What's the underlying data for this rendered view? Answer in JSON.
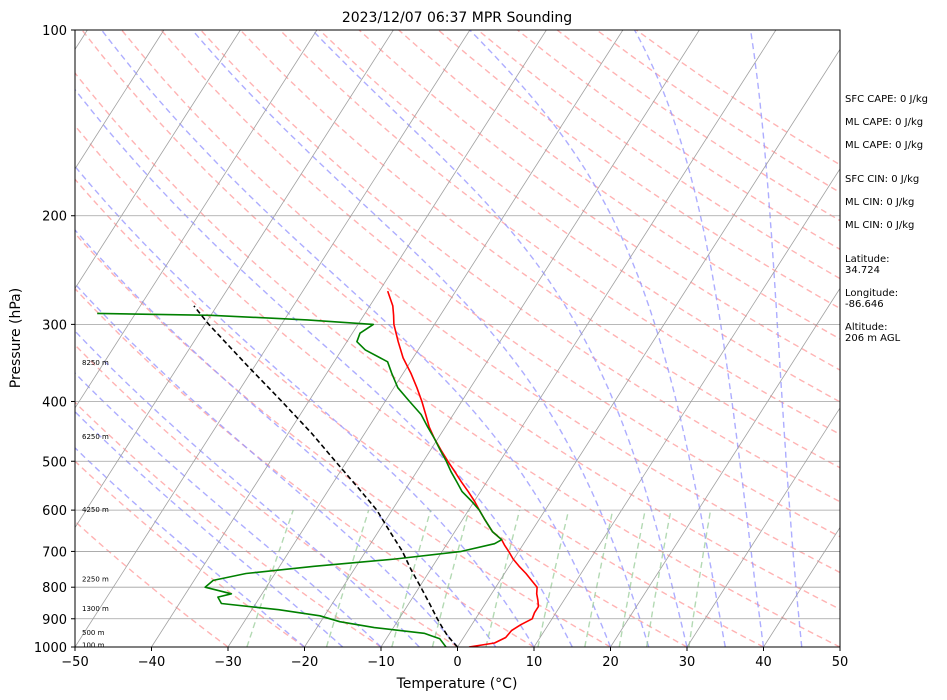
{
  "chart_data": {
    "type": "line",
    "title": "2023/12/07 06:37 MPR Sounding",
    "xlabel": "Temperature (°C)",
    "ylabel": "Pressure (hPa)",
    "xlim": [
      -50,
      50
    ],
    "ylim": [
      1000,
      100
    ],
    "y_scale": "log",
    "grid": true,
    "x_ticks": [
      "−50",
      "−40",
      "−30",
      "−20",
      "−10",
      "0",
      "10",
      "20",
      "30",
      "40",
      "50"
    ],
    "y_ticks": [
      "100",
      "200",
      "300",
      "400",
      "500",
      "600",
      "700",
      "800",
      "900",
      "1000"
    ],
    "height_labels": [
      {
        "text": "100 m",
        "p": 990
      },
      {
        "text": "500 m",
        "p": 945
      },
      {
        "text": "1300 m",
        "p": 865
      },
      {
        "text": "2250 m",
        "p": 775
      },
      {
        "text": "4250 m",
        "p": 598
      },
      {
        "text": "6250 m",
        "p": 455
      },
      {
        "text": "8250 m",
        "p": 345
      }
    ],
    "series": [
      {
        "name": "",
        "color": "#ff0000",
        "points": [
          {
            "p": 1000,
            "t": 1.5
          },
          {
            "p": 985,
            "t": 4.5
          },
          {
            "p": 965,
            "t": 5.5
          },
          {
            "p": 940,
            "t": 5.7
          },
          {
            "p": 920,
            "t": 6.4
          },
          {
            "p": 900,
            "t": 7.4
          },
          {
            "p": 880,
            "t": 7.2
          },
          {
            "p": 860,
            "t": 7.2
          },
          {
            "p": 840,
            "t": 6.6
          },
          {
            "p": 820,
            "t": 5.9
          },
          {
            "p": 800,
            "t": 5.4
          },
          {
            "p": 780,
            "t": 4.1
          },
          {
            "p": 760,
            "t": 2.8
          },
          {
            "p": 740,
            "t": 1.3
          },
          {
            "p": 720,
            "t": -0.1
          },
          {
            "p": 700,
            "t": -1.3
          },
          {
            "p": 685,
            "t": -2.3
          },
          {
            "p": 670,
            "t": -3.2
          },
          {
            "p": 650,
            "t": -5.1
          },
          {
            "p": 620,
            "t": -7.2
          },
          {
            "p": 600,
            "t": -8.6
          },
          {
            "p": 580,
            "t": -10.0
          },
          {
            "p": 560,
            "t": -11.6
          },
          {
            "p": 540,
            "t": -13.3
          },
          {
            "p": 520,
            "t": -15.0
          },
          {
            "p": 500,
            "t": -16.8
          },
          {
            "p": 480,
            "t": -18.6
          },
          {
            "p": 460,
            "t": -20.4
          },
          {
            "p": 440,
            "t": -22.1
          },
          {
            "p": 420,
            "t": -23.6
          },
          {
            "p": 400,
            "t": -25.2
          },
          {
            "p": 380,
            "t": -27.0
          },
          {
            "p": 360,
            "t": -29.0
          },
          {
            "p": 340,
            "t": -31.3
          },
          {
            "p": 320,
            "t": -33.3
          },
          {
            "p": 300,
            "t": -35.3
          },
          {
            "p": 290,
            "t": -36.1
          },
          {
            "p": 280,
            "t": -37.0
          },
          {
            "p": 265,
            "t": -38.9
          }
        ]
      },
      {
        "name": "",
        "color": "#008000",
        "points": [
          {
            "p": 1000,
            "t": -1.5
          },
          {
            "p": 990,
            "t": -2.0
          },
          {
            "p": 970,
            "t": -3.0
          },
          {
            "p": 950,
            "t": -5.5
          },
          {
            "p": 930,
            "t": -12.5
          },
          {
            "p": 910,
            "t": -17.5
          },
          {
            "p": 890,
            "t": -20.6
          },
          {
            "p": 870,
            "t": -26.5
          },
          {
            "p": 850,
            "t": -34.5
          },
          {
            "p": 830,
            "t": -35.5
          },
          {
            "p": 820,
            "t": -34.0
          },
          {
            "p": 800,
            "t": -38.0
          },
          {
            "p": 780,
            "t": -37.5
          },
          {
            "p": 760,
            "t": -33.8
          },
          {
            "p": 740,
            "t": -25.5
          },
          {
            "p": 720,
            "t": -15.5
          },
          {
            "p": 700,
            "t": -7.5
          },
          {
            "p": 680,
            "t": -3.8
          },
          {
            "p": 670,
            "t": -3.2
          },
          {
            "p": 650,
            "t": -5.1
          },
          {
            "p": 620,
            "t": -7.2
          },
          {
            "p": 600,
            "t": -8.6
          },
          {
            "p": 580,
            "t": -10.4
          },
          {
            "p": 560,
            "t": -12.4
          },
          {
            "p": 540,
            "t": -13.9
          },
          {
            "p": 520,
            "t": -15.5
          },
          {
            "p": 500,
            "t": -17.0
          },
          {
            "p": 480,
            "t": -18.7
          },
          {
            "p": 460,
            "t": -20.4
          },
          {
            "p": 440,
            "t": -22.3
          },
          {
            "p": 420,
            "t": -24.2
          },
          {
            "p": 400,
            "t": -26.8
          },
          {
            "p": 380,
            "t": -29.5
          },
          {
            "p": 360,
            "t": -31.5
          },
          {
            "p": 345,
            "t": -33.0
          },
          {
            "p": 330,
            "t": -36.9
          },
          {
            "p": 320,
            "t": -38.7
          },
          {
            "p": 310,
            "t": -39.0
          },
          {
            "p": 300,
            "t": -38.0
          },
          {
            "p": 295,
            "t": -47.0
          },
          {
            "p": 290,
            "t": -60.0
          },
          {
            "p": 288,
            "t": -75.0
          }
        ]
      },
      {
        "name": "",
        "color": "#000000",
        "dashed": true,
        "points": [
          {
            "p": 1000,
            "t": 0.0
          },
          {
            "p": 960,
            "t": -2.2
          },
          {
            "p": 930,
            "t": -3.6
          },
          {
            "p": 900,
            "t": -5.0
          },
          {
            "p": 850,
            "t": -7.3
          },
          {
            "p": 800,
            "t": -9.8
          },
          {
            "p": 750,
            "t": -12.5
          },
          {
            "p": 700,
            "t": -15.2
          },
          {
            "p": 650,
            "t": -18.5
          },
          {
            "p": 600,
            "t": -22.0
          },
          {
            "p": 550,
            "t": -26.5
          },
          {
            "p": 500,
            "t": -31.5
          },
          {
            "p": 450,
            "t": -37.0
          },
          {
            "p": 400,
            "t": -43.5
          },
          {
            "p": 350,
            "t": -51.0
          },
          {
            "p": 300,
            "t": -59.5
          },
          {
            "p": 280,
            "t": -63.0
          }
        ]
      }
    ]
  },
  "side_info": [
    {
      "lines": [
        "SFC CAPE: 0 J/kg"
      ],
      "gap": 0
    },
    {
      "lines": [
        "ML CAPE: 0 J/kg"
      ],
      "gap": 0
    },
    {
      "lines": [
        "ML CAPE: 0 J/kg"
      ],
      "gap": 0
    },
    {
      "lines": [
        "SFC CIN: 0 J/kg"
      ],
      "gap": 1
    },
    {
      "lines": [
        "ML CIN: 0 J/kg"
      ],
      "gap": 0
    },
    {
      "lines": [
        "ML CIN: 0 J/kg"
      ],
      "gap": 0
    },
    {
      "lines": [
        "Latitude:",
        "34.724"
      ],
      "gap": 1
    },
    {
      "lines": [
        "Longitude:",
        "-86.646"
      ],
      "gap": 0
    },
    {
      "lines": [
        "Altitude:",
        "206 m AGL"
      ],
      "gap": 0
    }
  ],
  "colors": {
    "temperature": "#ff0000",
    "dewpoint": "#008000",
    "parcel": "#000000",
    "dry_adiabat": "#ff9999",
    "moist_adiabat": "#9999ff",
    "mixing_ratio": "#99cc99",
    "isotherm": "#a0a0a0"
  }
}
